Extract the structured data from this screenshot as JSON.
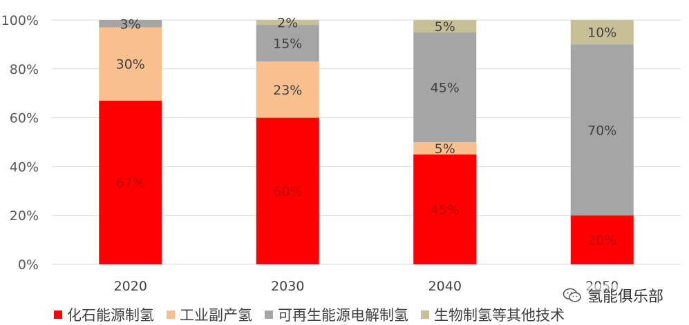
{
  "chart_data": {
    "type": "bar",
    "stacked": true,
    "categories": [
      "2020",
      "2030",
      "2040",
      "2050"
    ],
    "series": [
      {
        "name": "化石能源制氢",
        "values": [
          67,
          60,
          45,
          20
        ],
        "color": "#FF0000",
        "label_color": "#C00000"
      },
      {
        "name": "工业副产氢",
        "values": [
          30,
          23,
          5,
          0
        ],
        "color": "#F8BF8F",
        "label_color": "#404040"
      },
      {
        "name": "可再生能源电解制氢",
        "values": [
          3,
          15,
          45,
          70
        ],
        "color": "#A5A5A5",
        "label_color": "#404040"
      },
      {
        "name": "生物制氢等其他技术",
        "values": [
          0,
          2,
          5,
          10
        ],
        "color": "#C9BF97",
        "label_color": "#404040"
      }
    ],
    "ylim": [
      0,
      100
    ],
    "yticks": [
      "0%",
      "20%",
      "40%",
      "60%",
      "80%",
      "100%"
    ],
    "grid": true,
    "legend_position": "bottom",
    "data_label_suffix": "%"
  },
  "watermark": {
    "icon": "wechat-icon",
    "text": "氢能俱乐部"
  }
}
